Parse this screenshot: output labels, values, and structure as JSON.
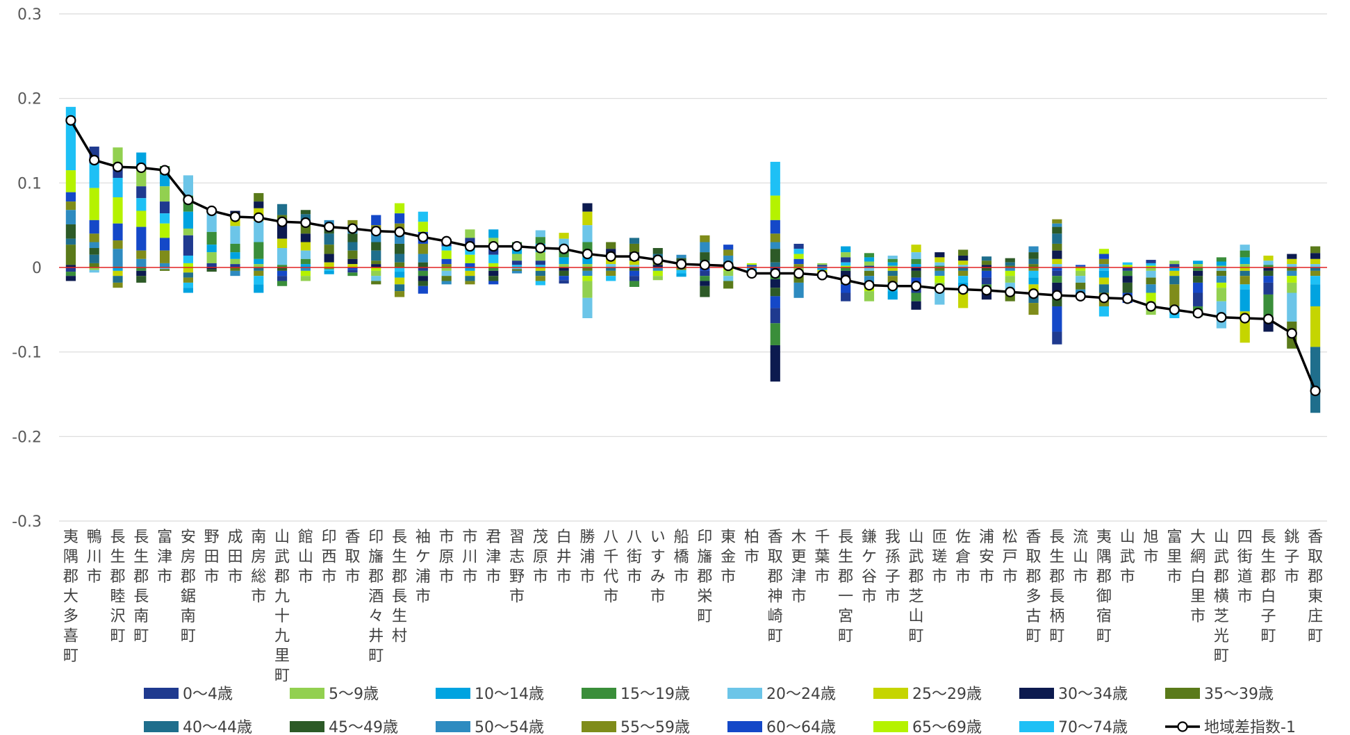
{
  "chart_data": {
    "type": "bar",
    "stacked": true,
    "ylim": [
      -0.3,
      0.3
    ],
    "yticks": [
      "0.3",
      "0.2",
      "0.1",
      "0",
      "-0.1",
      "-0.2",
      "-0.3"
    ],
    "legend_position": "bottom",
    "categories": [
      "夷隅郡大多喜町",
      "鴨川市",
      "長生郡睦沢町",
      "長生郡長南町",
      "富津市",
      "安房郡鋸南町",
      "野田市",
      "成田市",
      "南房総市",
      "山武郡九十九里町",
      "館山市",
      "印西市",
      "香取市",
      "印旛郡酒々井町",
      "長生郡長生村",
      "袖ケ浦市",
      "市原市",
      "市川市",
      "君津市",
      "習志野市",
      "茂原市",
      "白井市",
      "勝浦市",
      "八千代市",
      "八街市",
      "いすみ市",
      "船橋市",
      "印旛郡栄町",
      "東金市",
      "柏市",
      "香取郡神崎町",
      "木更津市",
      "千葉市",
      "長生郡一宮町",
      "鎌ケ谷市",
      "我孫子市",
      "山武郡芝山町",
      "匝瑳市",
      "佐倉市",
      "浦安市",
      "松戸市",
      "香取郡多古町",
      "長生郡長柄町",
      "流山市",
      "夷隅郡御宿町",
      "山武市",
      "旭市",
      "富里市",
      "大網白里市",
      "山武郡横芝光町",
      "四街道市",
      "長生郡白子町",
      "銚子市",
      "香取郡東庄町"
    ],
    "series": [
      {
        "name": "0〜4歳",
        "color": "#1F3A8F"
      },
      {
        "name": "5〜9歳",
        "color": "#92D050"
      },
      {
        "name": "10〜14歳",
        "color": "#00A3E0"
      },
      {
        "name": "15〜19歳",
        "color": "#3A8E3A"
      },
      {
        "name": "20〜24歳",
        "color": "#6CC5E8"
      },
      {
        "name": "25〜29歳",
        "color": "#C5D500"
      },
      {
        "name": "30〜34歳",
        "color": "#0C1A4F"
      },
      {
        "name": "35〜39歳",
        "color": "#5A7A1A"
      },
      {
        "name": "40〜44歳",
        "color": "#1F6E8C"
      },
      {
        "name": "45〜49歳",
        "color": "#2D5A27"
      },
      {
        "name": "50〜54歳",
        "color": "#2E8BC0"
      },
      {
        "name": "55〜59歳",
        "color": "#7F8C1A"
      },
      {
        "name": "60〜64歳",
        "color": "#1448C8"
      },
      {
        "name": "65〜69歳",
        "color": "#B5F200"
      },
      {
        "name": "70〜74歳",
        "color": "#1EC0F5"
      }
    ],
    "stack_pos": [
      [
        0.19,
        0.115,
        0.089,
        0.078,
        0.068,
        0.051,
        0.034,
        0.027,
        0.003
      ],
      [
        0.143,
        0.123,
        0.094,
        0.056,
        0.04,
        0.03,
        0.023,
        0.015,
        0.005
      ],
      [
        0.142,
        0.118,
        0.106,
        0.083,
        0.052,
        0.032,
        0.022,
        0.001
      ],
      [
        0.136,
        0.12,
        0.096,
        0.082,
        0.067,
        0.048,
        0.02,
        0.01
      ],
      [
        0.12,
        0.11,
        0.096,
        0.078,
        0.064,
        0.052,
        0.035,
        0.02,
        0.005
      ],
      [
        0.109,
        0.085,
        0.066,
        0.046,
        0.038,
        0.014,
        0.005
      ],
      [
        0.068,
        0.064,
        0.042,
        0.027,
        0.018,
        0.005
      ],
      [
        0.067,
        0.062,
        0.049,
        0.028,
        0.018,
        0.01,
        0.004
      ],
      [
        0.088,
        0.078,
        0.07,
        0.055,
        0.03,
        0.01,
        0.004
      ],
      [
        0.075,
        0.062,
        0.054,
        0.034,
        0.023,
        0.003
      ],
      [
        0.068,
        0.063,
        0.052,
        0.04,
        0.03,
        0.02,
        0.01,
        0.004
      ],
      [
        0.056,
        0.05,
        0.04,
        0.027,
        0.016,
        0.006
      ],
      [
        0.056,
        0.05,
        0.04,
        0.03,
        0.02,
        0.01,
        0.004
      ],
      [
        0.062,
        0.05,
        0.042,
        0.03,
        0.02,
        0.008,
        0.004
      ],
      [
        0.076,
        0.064,
        0.052,
        0.04,
        0.028,
        0.016,
        0.006
      ],
      [
        0.066,
        0.054,
        0.042,
        0.028,
        0.016,
        0.006
      ],
      [
        0.03,
        0.025,
        0.02,
        0.01,
        0.004
      ],
      [
        0.045,
        0.035,
        0.025,
        0.015,
        0.005
      ],
      [
        0.045,
        0.035,
        0.025,
        0.015,
        0.005
      ],
      [
        0.03,
        0.024,
        0.016,
        0.008,
        0.003
      ],
      [
        0.044,
        0.036,
        0.028,
        0.018,
        0.008,
        0.003
      ],
      [
        0.041,
        0.034,
        0.024,
        0.012,
        0.004
      ],
      [
        0.076,
        0.066,
        0.05,
        0.03,
        0.012,
        0.004
      ],
      [
        0.03,
        0.022,
        0.012,
        0.004
      ],
      [
        0.035,
        0.028,
        0.018,
        0.008,
        0.003
      ],
      [
        0.023,
        0.016,
        0.008,
        0.003
      ],
      [
        0.015,
        0.011,
        0.006,
        0.002
      ],
      [
        0.038,
        0.03,
        0.018,
        0.008,
        0.003
      ],
      [
        0.027,
        0.021,
        0.014,
        0.006,
        0.002
      ],
      [
        0.005,
        0.003,
        0.001
      ],
      [
        0.125,
        0.085,
        0.056,
        0.04,
        0.03,
        0.022,
        0.006
      ],
      [
        0.028,
        0.022,
        0.016,
        0.01,
        0.004
      ],
      [
        0.005,
        0.003,
        0.001
      ],
      [
        0.025,
        0.018,
        0.012,
        0.006,
        0.002
      ],
      [
        0.017,
        0.012,
        0.007,
        0.002
      ],
      [
        0.014,
        0.01,
        0.006,
        0.002
      ],
      [
        0.027,
        0.018,
        0.01,
        0.004
      ],
      [
        0.018,
        0.012,
        0.006,
        0.002
      ],
      [
        0.021,
        0.014,
        0.008,
        0.003
      ],
      [
        0.013,
        0.008,
        0.003
      ],
      [
        0.011,
        0.006,
        0.002
      ],
      [
        0.025,
        0.018,
        0.01,
        0.004
      ],
      [
        0.057,
        0.052,
        0.048,
        0.04,
        0.028,
        0.02,
        0.01,
        0.004
      ],
      [
        0.003,
        0.001
      ],
      [
        0.022,
        0.016,
        0.01,
        0.004
      ],
      [
        0.006,
        0.003
      ],
      [
        0.009,
        0.005,
        0.002
      ],
      [
        0.008,
        0.004
      ],
      [
        0.008,
        0.004
      ],
      [
        0.012,
        0.007,
        0.002
      ],
      [
        0.027,
        0.02,
        0.012,
        0.004
      ],
      [
        0.014,
        0.008,
        0.003
      ],
      [
        0.016,
        0.01,
        0.004
      ],
      [
        0.025,
        0.017,
        0.01,
        0.004
      ]
    ],
    "stack_neg": [
      [
        -0.005,
        -0.01,
        -0.016
      ],
      [
        -0.003,
        -0.006
      ],
      [
        -0.004,
        -0.01,
        -0.018,
        -0.024
      ],
      [
        -0.004,
        -0.01,
        -0.018
      ],
      [
        -0.002,
        -0.004
      ],
      [
        -0.006,
        -0.012,
        -0.018,
        -0.024,
        -0.03
      ],
      [
        -0.002,
        -0.005
      ],
      [
        -0.004,
        -0.01
      ],
      [
        -0.004,
        -0.01,
        -0.02,
        -0.03
      ],
      [
        -0.004,
        -0.01,
        -0.016,
        -0.022
      ],
      [
        -0.004,
        -0.01,
        -0.016
      ],
      [
        -0.002,
        -0.004,
        -0.008
      ],
      [
        -0.003,
        -0.006,
        -0.01
      ],
      [
        -0.004,
        -0.01,
        -0.016,
        -0.02
      ],
      [
        -0.005,
        -0.012,
        -0.02,
        -0.028,
        -0.035
      ],
      [
        -0.004,
        -0.01,
        -0.016,
        -0.022,
        -0.031
      ],
      [
        -0.004,
        -0.01,
        -0.016,
        -0.02
      ],
      [
        -0.004,
        -0.01,
        -0.016,
        -0.02
      ],
      [
        -0.004,
        -0.01,
        -0.016,
        -0.02
      ],
      [
        -0.002,
        -0.004,
        -0.007
      ],
      [
        -0.004,
        -0.01,
        -0.016,
        -0.021
      ],
      [
        -0.004,
        -0.01,
        -0.015,
        -0.019
      ],
      [
        -0.004,
        -0.01,
        -0.016,
        -0.036,
        -0.06
      ],
      [
        -0.004,
        -0.01,
        -0.016
      ],
      [
        -0.004,
        -0.01,
        -0.016,
        -0.023
      ],
      [
        -0.004,
        -0.01,
        -0.015
      ],
      [
        -0.003,
        -0.007,
        -0.011
      ],
      [
        -0.004,
        -0.01,
        -0.016,
        -0.022,
        -0.035
      ],
      [
        -0.004,
        -0.01,
        -0.016,
        -0.025
      ],
      [
        -0.002,
        -0.005,
        -0.008
      ],
      [
        -0.004,
        -0.014,
        -0.024,
        -0.034,
        -0.048,
        -0.066,
        -0.092,
        -0.135
      ],
      [
        -0.004,
        -0.01,
        -0.018,
        -0.036
      ],
      [
        -0.003,
        -0.007,
        -0.012
      ],
      [
        -0.004,
        -0.012,
        -0.02,
        -0.03,
        -0.04
      ],
      [
        -0.004,
        -0.01,
        -0.018,
        -0.028,
        -0.04
      ],
      [
        -0.004,
        -0.01,
        -0.018,
        -0.028,
        -0.038
      ],
      [
        -0.004,
        -0.012,
        -0.02,
        -0.03,
        -0.04,
        -0.05
      ],
      [
        -0.004,
        -0.01,
        -0.018,
        -0.028,
        -0.044
      ],
      [
        -0.004,
        -0.01,
        -0.018,
        -0.03,
        -0.048
      ],
      [
        -0.004,
        -0.012,
        -0.02,
        -0.028,
        -0.038
      ],
      [
        -0.004,
        -0.01,
        -0.018,
        -0.028,
        -0.04
      ],
      [
        -0.004,
        -0.012,
        -0.02,
        -0.03,
        -0.042,
        -0.056
      ],
      [
        -0.004,
        -0.01,
        -0.018,
        -0.03,
        -0.046,
        -0.076,
        -0.091
      ],
      [
        -0.004,
        -0.01,
        -0.018,
        -0.026,
        -0.034
      ],
      [
        -0.004,
        -0.012,
        -0.02,
        -0.03,
        -0.046,
        -0.058
      ],
      [
        -0.004,
        -0.01,
        -0.018,
        -0.03,
        -0.042
      ],
      [
        -0.004,
        -0.012,
        -0.02,
        -0.03,
        -0.04,
        -0.056
      ],
      [
        -0.004,
        -0.01,
        -0.02,
        -0.046,
        -0.06
      ],
      [
        -0.004,
        -0.01,
        -0.018,
        -0.03,
        -0.046,
        -0.058
      ],
      [
        -0.004,
        -0.01,
        -0.018,
        -0.024,
        -0.04,
        -0.072
      ],
      [
        -0.004,
        -0.01,
        -0.02,
        -0.026,
        -0.052,
        -0.089
      ],
      [
        -0.004,
        -0.01,
        -0.018,
        -0.032,
        -0.06,
        -0.076
      ],
      [
        -0.004,
        -0.01,
        -0.018,
        -0.03,
        -0.064,
        -0.096
      ],
      [
        -0.004,
        -0.01,
        -0.02,
        -0.046,
        -0.094,
        -0.172
      ]
    ],
    "line": {
      "name": "地域差指数-1",
      "values": [
        0.174,
        0.127,
        0.119,
        0.118,
        0.115,
        0.08,
        0.067,
        0.06,
        0.059,
        0.054,
        0.053,
        0.048,
        0.046,
        0.043,
        0.042,
        0.036,
        0.031,
        0.025,
        0.025,
        0.025,
        0.023,
        0.022,
        0.016,
        0.013,
        0.013,
        0.009,
        0.004,
        0.003,
        0.002,
        -0.007,
        -0.007,
        -0.007,
        -0.009,
        -0.015,
        -0.021,
        -0.022,
        -0.022,
        -0.025,
        -0.026,
        -0.027,
        -0.029,
        -0.031,
        -0.033,
        -0.034,
        -0.036,
        -0.037,
        -0.046,
        -0.05,
        -0.054,
        -0.059,
        -0.06,
        -0.061,
        -0.078,
        -0.146
      ]
    }
  }
}
